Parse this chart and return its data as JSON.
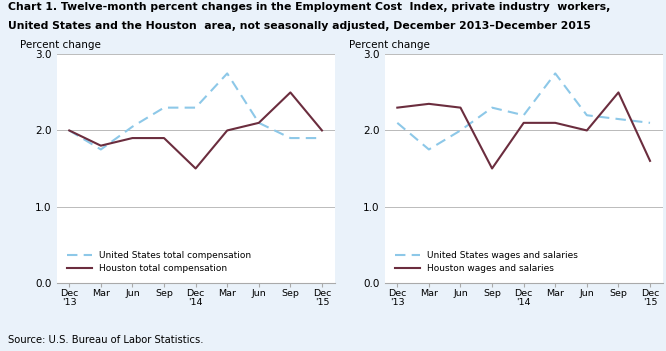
{
  "title_line1": "Chart 1. Twelve-month percent changes in the Employment Cost  Index, private industry  workers,",
  "title_line2": "United States and the Houston  area, not seasonally adjusted, December 2013–December 2015",
  "ylabel": "Percent change",
  "source": "Source: U.S. Bureau of Labor Statistics.",
  "x_labels": [
    "Dec\n'13",
    "Mar",
    "Jun",
    "Sep",
    "Dec\n'14",
    "Mar",
    "Jun",
    "Sep",
    "Dec\n'15"
  ],
  "ylim": [
    0.0,
    3.0
  ],
  "yticks": [
    0.0,
    1.0,
    2.0,
    3.0
  ],
  "chart1": {
    "us_total": [
      2.0,
      1.75,
      2.05,
      2.3,
      2.3,
      2.75,
      2.1,
      1.9,
      1.9
    ],
    "houston_total": [
      2.0,
      1.8,
      1.9,
      1.9,
      1.5,
      2.0,
      2.1,
      2.5,
      2.0
    ],
    "legend1": "United States total compensation",
    "legend2": "Houston total compensation"
  },
  "chart2": {
    "us_wages": [
      2.1,
      1.75,
      2.0,
      2.3,
      2.2,
      2.75,
      2.2,
      2.15,
      2.1
    ],
    "houston_wages": [
      2.3,
      2.35,
      2.3,
      1.5,
      2.1,
      2.1,
      2.0,
      2.5,
      1.6
    ],
    "legend1": "United States wages and salaries",
    "legend2": "Houston wages and salaries"
  },
  "us_color": "#8DC8E8",
  "houston_color": "#6B2D3E",
  "us_linewidth": 1.5,
  "houston_linewidth": 1.5,
  "grid_color": "#bbbbbb",
  "bg_color": "#EAF2FA",
  "plot_bg": "#ffffff"
}
